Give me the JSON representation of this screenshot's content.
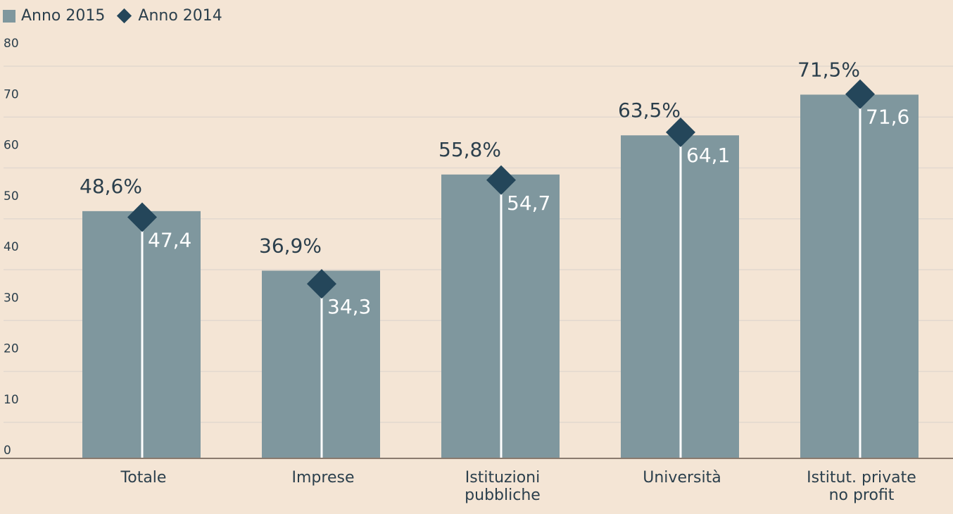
{
  "legend": {
    "series_2015": "Anno 2015",
    "series_2014": "Anno 2014"
  },
  "colors": {
    "background": "#f4e5d5",
    "bar": "#7f979e",
    "marker": "#24465a",
    "grid": "#e2d8cf",
    "axis": "#8a7a6e",
    "text": "#2b3f4c"
  },
  "chart_data": {
    "type": "bar",
    "title": "",
    "xlabel": "",
    "ylabel": "",
    "ylim": [
      0,
      80
    ],
    "yticks": [
      "0",
      "10",
      "20",
      "30",
      "40",
      "50",
      "60",
      "70",
      "80"
    ],
    "categories": [
      [
        "Totale"
      ],
      [
        "Imprese"
      ],
      [
        "Istituzioni",
        "pubbliche"
      ],
      [
        "Università"
      ],
      [
        "Istitut. private",
        "no profit"
      ]
    ],
    "series": [
      {
        "name": "Anno 2015",
        "kind": "bar",
        "values": [
          48.6,
          36.9,
          55.8,
          63.5,
          71.5
        ],
        "labels": [
          "48,6%",
          "36,9%",
          "55,8%",
          "63,5%",
          "71,5%"
        ]
      },
      {
        "name": "Anno 2014",
        "kind": "diamond",
        "values": [
          47.4,
          34.3,
          54.7,
          64.1,
          71.6
        ],
        "labels": [
          "47,4",
          "34,3",
          "54,7",
          "64,1",
          "71,6"
        ]
      }
    ],
    "grid": true,
    "legend_position": "top-left"
  }
}
